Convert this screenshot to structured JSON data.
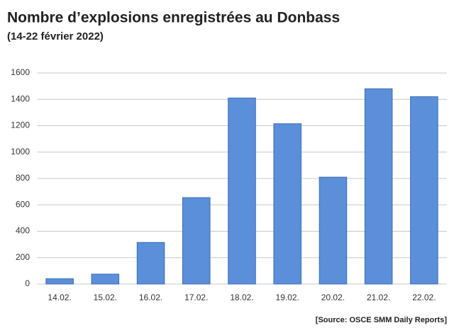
{
  "chart_data": {
    "type": "bar",
    "title": "Nombre d’explosions enregistrées au Donbass",
    "subtitle": "(14-22 février 2022)",
    "source": "[Source: OSCE SMM Daily Reports]",
    "categories": [
      "14.02.",
      "15.02.",
      "16.02.",
      "17.02.",
      "18.02.",
      "19.02.",
      "20.02.",
      "21.02.",
      "22.02."
    ],
    "values": [
      40,
      75,
      315,
      655,
      1410,
      1215,
      810,
      1480,
      1420
    ],
    "color": "#5b8fd9",
    "ylim": [
      0,
      1600
    ],
    "yticks": [
      0,
      200,
      400,
      600,
      800,
      1000,
      1200,
      1400,
      1600
    ],
    "grid": true
  }
}
